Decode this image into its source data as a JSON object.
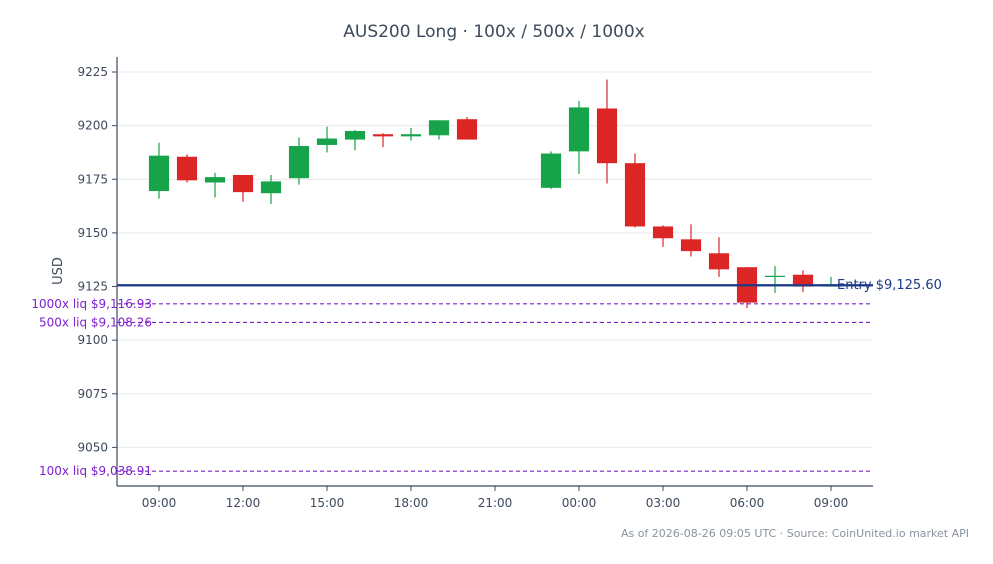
{
  "chart_data": {
    "type": "candlestick",
    "title": "AUS200 Long · 100x / 500x / 1000x",
    "ylabel": "USD",
    "xlabel": "",
    "ylim": [
      9032,
      9232
    ],
    "yticks": [
      9050,
      9075,
      9100,
      9125,
      9150,
      9175,
      9200,
      9225
    ],
    "xlim": [
      -1.5,
      25.5
    ],
    "xticks": [
      {
        "label": "09:00",
        "t": 0
      },
      {
        "label": "12:00",
        "t": 3
      },
      {
        "label": "15:00",
        "t": 6
      },
      {
        "label": "18:00",
        "t": 9
      },
      {
        "label": "21:00",
        "t": 12
      },
      {
        "label": "00:00",
        "t": 15
      },
      {
        "label": "03:00",
        "t": 18
      },
      {
        "label": "06:00",
        "t": 21
      },
      {
        "label": "09:00",
        "t": 24
      }
    ],
    "grid": true,
    "candles": [
      {
        "t": 0,
        "o": 9169.5,
        "h": 9192,
        "l": 9166,
        "c": 9186
      },
      {
        "t": 1,
        "o": 9185.5,
        "h": 9186.5,
        "l": 9173.5,
        "c": 9174.5
      },
      {
        "t": 2,
        "o": 9173.5,
        "h": 9178,
        "l": 9166.5,
        "c": 9176
      },
      {
        "t": 3,
        "o": 9177,
        "h": 9177,
        "l": 9164.5,
        "c": 9169
      },
      {
        "t": 4,
        "o": 9168.5,
        "h": 9177,
        "l": 9163.5,
        "c": 9174
      },
      {
        "t": 5,
        "o": 9175.5,
        "h": 9194.5,
        "l": 9172.5,
        "c": 9190.5
      },
      {
        "t": 6,
        "o": 9191,
        "h": 9199.5,
        "l": 9187.5,
        "c": 9194
      },
      {
        "t": 7,
        "o": 9193.5,
        "h": 9198,
        "l": 9188.5,
        "c": 9197.5
      },
      {
        "t": 8,
        "o": 9196,
        "h": 9196.5,
        "l": 9190,
        "c": 9195
      },
      {
        "t": 9,
        "o": 9195,
        "h": 9199,
        "l": 9193,
        "c": 9196
      },
      {
        "t": 10,
        "o": 9195.5,
        "h": 9202.5,
        "l": 9193.5,
        "c": 9202.5
      },
      {
        "t": 11,
        "o": 9203,
        "h": 9204,
        "l": 9193.5,
        "c": 9193.5
      },
      {
        "t": 14,
        "o": 9171,
        "h": 9188,
        "l": 9170.5,
        "c": 9187
      },
      {
        "t": 15,
        "o": 9188,
        "h": 9211.5,
        "l": 9177.5,
        "c": 9208.5
      },
      {
        "t": 16,
        "o": 9208,
        "h": 9221.5,
        "l": 9173,
        "c": 9182.5
      },
      {
        "t": 17,
        "o": 9182.5,
        "h": 9187,
        "l": 9152.5,
        "c": 9153
      },
      {
        "t": 18,
        "o": 9153,
        "h": 9153.5,
        "l": 9143.5,
        "c": 9147.5
      },
      {
        "t": 19,
        "o": 9147,
        "h": 9154,
        "l": 9139,
        "c": 9141.5
      },
      {
        "t": 20,
        "o": 9140.5,
        "h": 9148,
        "l": 9129.5,
        "c": 9133
      },
      {
        "t": 21,
        "o": 9134,
        "h": 9134,
        "l": 9115,
        "c": 9117.5
      },
      {
        "t": 22,
        "o": 9130,
        "h": 9134.5,
        "l": 9122,
        "c": 9130
      },
      {
        "t": 23,
        "o": 9130.5,
        "h": 9132.5,
        "l": 9122.5,
        "c": 9125
      },
      {
        "t": 24,
        "o": 9125,
        "h": 9129.5,
        "l": 9125,
        "c": 9126
      }
    ],
    "entry": {
      "label": "Entry $9,125.60",
      "value": 9125.6
    },
    "liquidation_levels": [
      {
        "label": "1000x liq $9,116.93",
        "value": 9116.93
      },
      {
        "label": "500x liq $9,108.26",
        "value": 9108.26
      },
      {
        "label": "100x liq $9,038.91",
        "value": 9038.91
      }
    ],
    "colors": {
      "up": "#16a34a",
      "down": "#dc2626",
      "entry": "#1e3a8a",
      "liq": "#7e22ce",
      "grid": "#e8eaed",
      "axis": "#3d4a5c"
    }
  },
  "footer": "As of 2026-08-26 09:05 UTC · Source: CoinUnited.io market API"
}
